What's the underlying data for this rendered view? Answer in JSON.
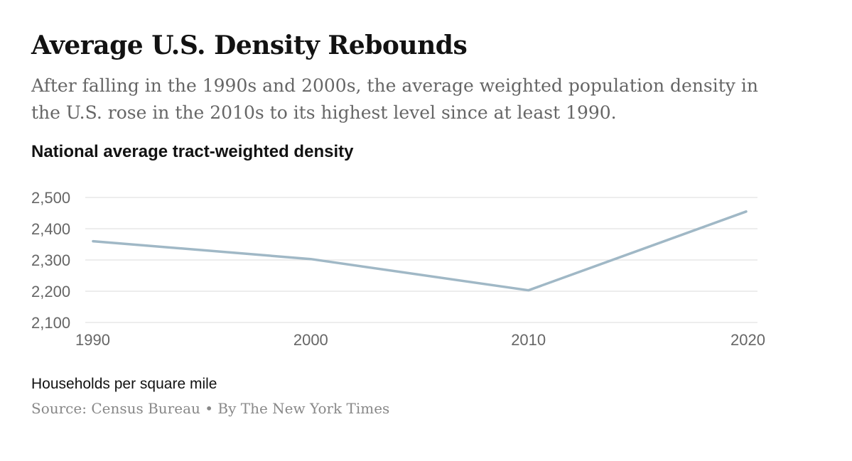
{
  "headline": "Average U.S. Density Rebounds",
  "dek": "After falling in the 1990s and 2000s, the average weighted population density in the U.S. rose in the 2010s to its highest level since at least 1990.",
  "chart_data": {
    "type": "line",
    "title": "National average tract-weighted density",
    "x": [
      1990,
      2000,
      2010,
      2020
    ],
    "x_tick_labels": [
      "1990",
      "2000",
      "2010",
      "2020"
    ],
    "series": [
      {
        "values": [
          2360,
          2303,
          2203,
          2455
        ]
      }
    ],
    "ylim": [
      2100,
      2500
    ],
    "y_ticks": [
      2100,
      2200,
      2300,
      2400,
      2500
    ],
    "y_tick_labels": [
      "2,100",
      "2,200",
      "2,300",
      "2,400",
      "2,500"
    ],
    "grid": true,
    "line_color": "#a0b8c6",
    "grid_color": "#e2e2e2"
  },
  "unit_note": "Households per square mile",
  "source": "Source: Census Bureau • By The New York Times"
}
